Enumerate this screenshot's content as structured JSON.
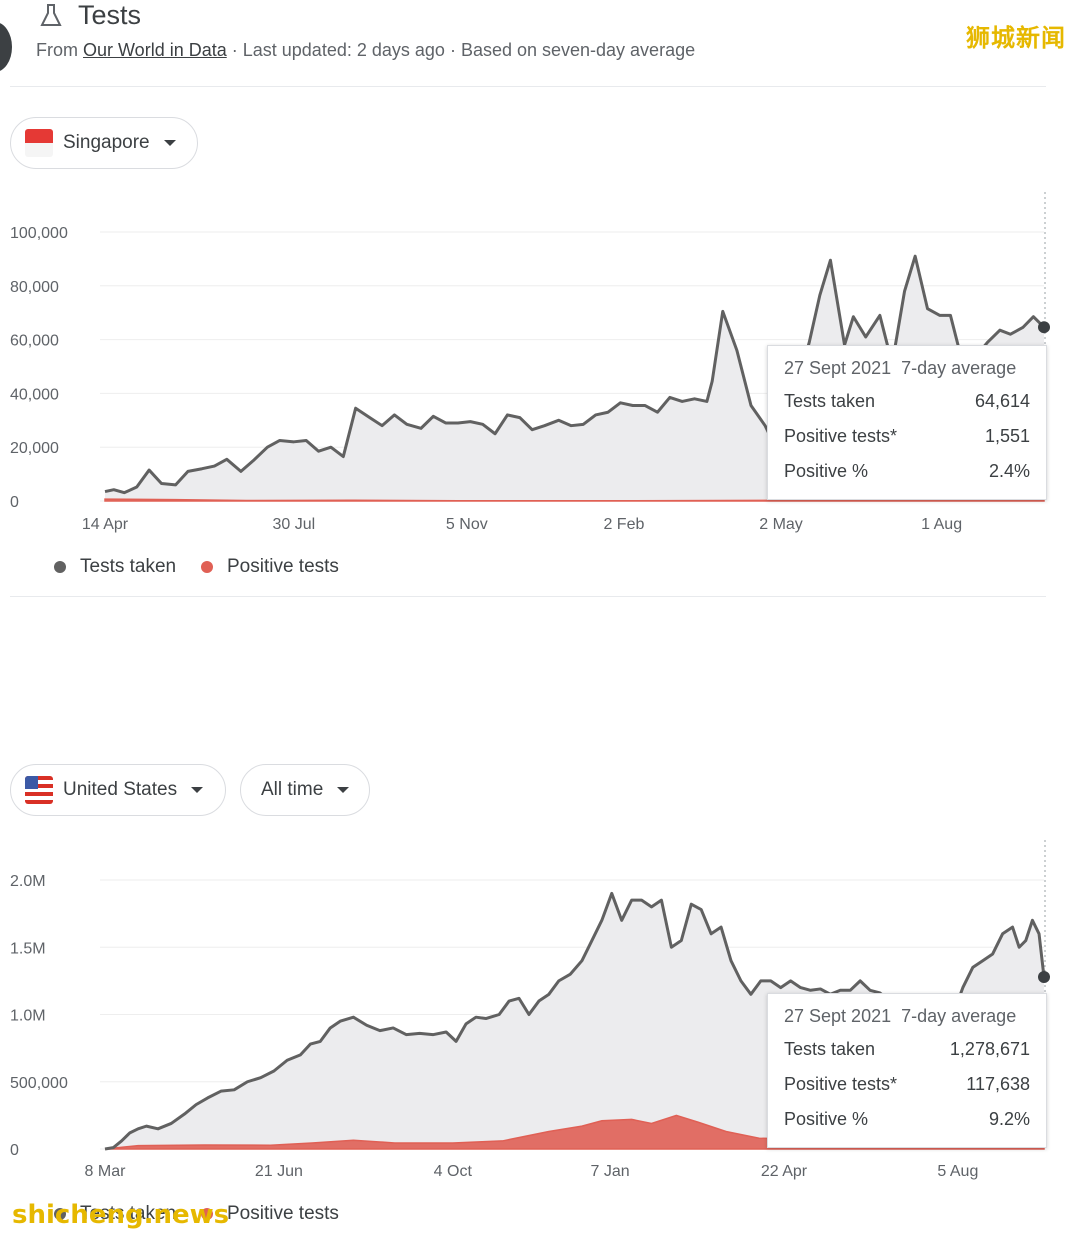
{
  "header": {
    "title": "Tests",
    "from_label": "From",
    "source_link": "Our World in Data",
    "updated": "Last updated: 2 days ago",
    "basis": "Based on seven-day average"
  },
  "watermark_top": "狮城新闻",
  "watermark_bottom": "shicheng.news",
  "colors": {
    "tests": "#616161",
    "positive": "#e06055",
    "area": "#ececee"
  },
  "singapore": {
    "country_select": "Singapore",
    "tooltip": {
      "date": "27 Sept 2021",
      "basis": "7-day average",
      "rows": [
        {
          "label": "Tests taken",
          "value": "64,614"
        },
        {
          "label": "Positive tests*",
          "value": "1,551"
        },
        {
          "label": "Positive %",
          "value": "2.4%"
        }
      ]
    },
    "legend": [
      "Tests taken",
      "Positive tests"
    ]
  },
  "united_states": {
    "country_select": "United States",
    "range_select": "All time",
    "tooltip": {
      "date": "27 Sept 2021",
      "basis": "7-day average",
      "rows": [
        {
          "label": "Tests taken",
          "value": "1,278,671"
        },
        {
          "label": "Positive tests*",
          "value": "117,638"
        },
        {
          "label": "Positive %",
          "value": "9.2%"
        }
      ]
    },
    "legend": [
      "Tests taken",
      "Positive tests"
    ]
  },
  "chart_data": [
    {
      "type": "area",
      "ylim": [
        0,
        100000
      ],
      "yticks": [
        "100,000",
        "80,000",
        "60,000",
        "40,000",
        "20,000",
        "0"
      ],
      "ytick_values": [
        100000,
        80000,
        60000,
        40000,
        20000,
        0
      ],
      "xticks": [
        "14 Apr",
        "30 Jul",
        "5 Nov",
        "2 Feb",
        "2 May",
        "1 Aug"
      ],
      "xtick_index": [
        0,
        107,
        205,
        294,
        383,
        474
      ],
      "x_count": 533,
      "grid": true,
      "legend_position": "bottom-left",
      "series": [
        {
          "name": "Tests taken",
          "points": [
            [
              0,
              3500
            ],
            [
              5,
              4200
            ],
            [
              11,
              3100
            ],
            [
              18,
              5200
            ],
            [
              25,
              11500
            ],
            [
              32,
              6500
            ],
            [
              40,
              6000
            ],
            [
              47,
              11000
            ],
            [
              55,
              12000
            ],
            [
              62,
              13000
            ],
            [
              69,
              15500
            ],
            [
              77,
              11000
            ],
            [
              84,
              15000
            ],
            [
              92,
              20000
            ],
            [
              99,
              22500
            ],
            [
              107,
              22000
            ],
            [
              114,
              22500
            ],
            [
              121,
              18500
            ],
            [
              128,
              20000
            ],
            [
              135,
              16500
            ],
            [
              142,
              34500
            ],
            [
              150,
              31000
            ],
            [
              157,
              28000
            ],
            [
              164,
              32000
            ],
            [
              171,
              28500
            ],
            [
              179,
              27000
            ],
            [
              186,
              31500
            ],
            [
              193,
              29000
            ],
            [
              200,
              29000
            ],
            [
              207,
              29500
            ],
            [
              214,
              28500
            ],
            [
              221,
              25000
            ],
            [
              228,
              32000
            ],
            [
              235,
              31000
            ],
            [
              242,
              26500
            ],
            [
              249,
              28000
            ],
            [
              257,
              30000
            ],
            [
              264,
              28000
            ],
            [
              271,
              28500
            ],
            [
              278,
              32000
            ],
            [
              285,
              33000
            ],
            [
              292,
              36500
            ],
            [
              299,
              35500
            ],
            [
              306,
              35500
            ],
            [
              313,
              33000
            ],
            [
              320,
              38500
            ],
            [
              327,
              37000
            ],
            [
              334,
              38000
            ],
            [
              341,
              37000
            ],
            [
              344,
              44500
            ],
            [
              350,
              70500
            ],
            [
              358,
              56000
            ],
            [
              366,
              35500
            ],
            [
              374,
              28000
            ],
            [
              381,
              18500
            ],
            [
              387,
              30000
            ],
            [
              393,
              45000
            ],
            [
              399,
              59000
            ],
            [
              405,
              76500
            ],
            [
              411,
              89500
            ],
            [
              419,
              58000
            ],
            [
              424,
              68500
            ],
            [
              431,
              61000
            ],
            [
              439,
              69000
            ],
            [
              446,
              51000
            ],
            [
              453,
              78000
            ],
            [
              459,
              91000
            ],
            [
              466,
              71500
            ],
            [
              473,
              69000
            ],
            [
              479,
              69000
            ],
            [
              486,
              51000
            ],
            [
              493,
              53500
            ],
            [
              500,
              59000
            ],
            [
              507,
              63500
            ],
            [
              513,
              62000
            ],
            [
              520,
              64500
            ],
            [
              526,
              68500
            ],
            [
              532,
              64614
            ]
          ]
        },
        {
          "name": "Positive tests",
          "points": [
            [
              0,
              700
            ],
            [
              40,
              500
            ],
            [
              80,
              200
            ],
            [
              140,
              300
            ],
            [
              200,
              100
            ],
            [
              300,
              100
            ],
            [
              400,
              300
            ],
            [
              532,
              1551
            ]
          ]
        }
      ]
    },
    {
      "type": "area",
      "ylim": [
        0,
        2000000
      ],
      "yticks": [
        "2.0M",
        "1.5M",
        "1.0M",
        "500,000",
        "0"
      ],
      "ytick_values": [
        2000000,
        1500000,
        1000000,
        500000,
        0
      ],
      "xticks": [
        "8 Mar",
        "21 Jun",
        "4 Oct",
        "7 Jan",
        "22 Apr",
        "5 Aug"
      ],
      "xtick_index": [
        0,
        105,
        210,
        305,
        410,
        515
      ],
      "x_count": 568,
      "grid": true,
      "legend_position": "bottom-left",
      "series": [
        {
          "name": "Tests taken",
          "points": [
            [
              0,
              0
            ],
            [
              5,
              10000
            ],
            [
              10,
              60000
            ],
            [
              15,
              120000
            ],
            [
              20,
              150000
            ],
            [
              25,
              170000
            ],
            [
              32,
              150000
            ],
            [
              40,
              190000
            ],
            [
              48,
              260000
            ],
            [
              55,
              330000
            ],
            [
              62,
              380000
            ],
            [
              70,
              430000
            ],
            [
              78,
              440000
            ],
            [
              86,
              500000
            ],
            [
              94,
              530000
            ],
            [
              102,
              580000
            ],
            [
              110,
              660000
            ],
            [
              118,
              700000
            ],
            [
              124,
              780000
            ],
            [
              130,
              800000
            ],
            [
              136,
              900000
            ],
            [
              142,
              950000
            ],
            [
              150,
              980000
            ],
            [
              158,
              920000
            ],
            [
              166,
              880000
            ],
            [
              174,
              900000
            ],
            [
              182,
              850000
            ],
            [
              190,
              860000
            ],
            [
              198,
              850000
            ],
            [
              206,
              870000
            ],
            [
              212,
              800000
            ],
            [
              218,
              930000
            ],
            [
              224,
              980000
            ],
            [
              230,
              970000
            ],
            [
              238,
              1000000
            ],
            [
              244,
              1100000
            ],
            [
              250,
              1120000
            ],
            [
              256,
              1000000
            ],
            [
              262,
              1100000
            ],
            [
              268,
              1150000
            ],
            [
              274,
              1250000
            ],
            [
              281,
              1300000
            ],
            [
              288,
              1400000
            ],
            [
              294,
              1550000
            ],
            [
              300,
              1700000
            ],
            [
              306,
              1900000
            ],
            [
              312,
              1700000
            ],
            [
              318,
              1850000
            ],
            [
              324,
              1850000
            ],
            [
              330,
              1800000
            ],
            [
              336,
              1850000
            ],
            [
              342,
              1500000
            ],
            [
              348,
              1550000
            ],
            [
              354,
              1820000
            ],
            [
              360,
              1780000
            ],
            [
              366,
              1600000
            ],
            [
              372,
              1650000
            ],
            [
              378,
              1400000
            ],
            [
              384,
              1250000
            ],
            [
              390,
              1150000
            ],
            [
              396,
              1250000
            ],
            [
              402,
              1250000
            ],
            [
              408,
              1200000
            ],
            [
              414,
              1250000
            ],
            [
              420,
              1200000
            ],
            [
              426,
              1180000
            ],
            [
              432,
              1190000
            ],
            [
              438,
              1150000
            ],
            [
              444,
              1180000
            ],
            [
              450,
              1180000
            ],
            [
              456,
              1250000
            ],
            [
              462,
              1180000
            ],
            [
              468,
              1160000
            ],
            [
              474,
              1100000
            ],
            [
              480,
              1000000
            ],
            [
              488,
              900000
            ],
            [
              496,
              760000
            ],
            [
              506,
              850000
            ],
            [
              512,
              1000000
            ],
            [
              518,
              1200000
            ],
            [
              524,
              1350000
            ],
            [
              530,
              1400000
            ],
            [
              536,
              1450000
            ],
            [
              542,
              1600000
            ],
            [
              548,
              1650000
            ],
            [
              552,
              1500000
            ],
            [
              556,
              1550000
            ],
            [
              560,
              1700000
            ],
            [
              564,
              1600000
            ],
            [
              567,
              1278671
            ]
          ]
        },
        {
          "name": "Positive tests",
          "points": [
            [
              0,
              0
            ],
            [
              20,
              25000
            ],
            [
              60,
              30000
            ],
            [
              100,
              28000
            ],
            [
              125,
              45000
            ],
            [
              150,
              65000
            ],
            [
              175,
              45000
            ],
            [
              210,
              45000
            ],
            [
              240,
              60000
            ],
            [
              268,
              130000
            ],
            [
              288,
              170000
            ],
            [
              300,
              210000
            ],
            [
              318,
              220000
            ],
            [
              330,
              190000
            ],
            [
              345,
              250000
            ],
            [
              358,
              200000
            ],
            [
              375,
              130000
            ],
            [
              395,
              80000
            ],
            [
              430,
              70000
            ],
            [
              470,
              60000
            ],
            [
              500,
              40000
            ],
            [
              520,
              40000
            ],
            [
              545,
              110000
            ],
            [
              567,
              117638
            ]
          ]
        }
      ]
    }
  ]
}
